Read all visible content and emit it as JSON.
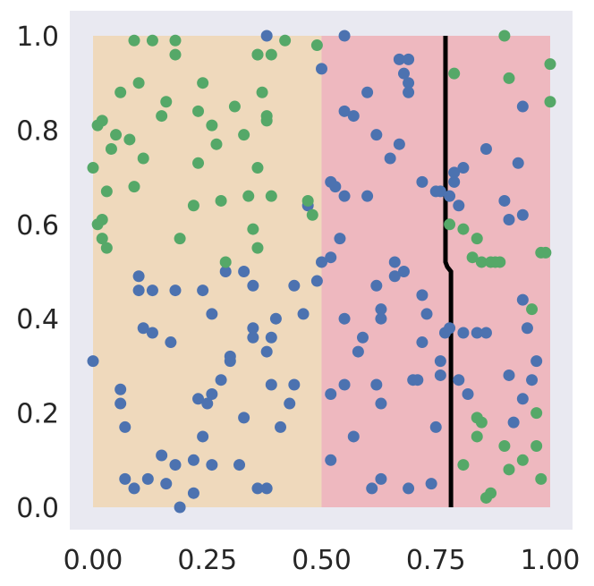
{
  "chart_data": {
    "type": "scatter",
    "title": "",
    "xlabel": "",
    "ylabel": "",
    "xlim": [
      -0.05,
      1.05
    ],
    "ylim": [
      -0.05,
      1.05
    ],
    "grid": false,
    "x_ticks": [
      "0.00",
      "0.25",
      "0.50",
      "0.75",
      "1.00"
    ],
    "x_tick_values": [
      0,
      0.25,
      0.5,
      0.75,
      1.0
    ],
    "y_ticks": [
      "0.0",
      "0.2",
      "0.4",
      "0.6",
      "0.8",
      "1.0"
    ],
    "y_tick_values": [
      0,
      0.2,
      0.4,
      0.6,
      0.8,
      1.0
    ],
    "colors": {
      "axes_bg": "#e9e9f1",
      "region_left": "#efd9bc",
      "region_right": "#eeb8bf",
      "blue": "#4c72b0",
      "green": "#55a868",
      "boundary": "#000000"
    },
    "regions": [
      {
        "x": [
          0.0,
          0.5
        ],
        "y": [
          0.0,
          1.0
        ],
        "color": "region_left"
      },
      {
        "x": [
          0.5,
          1.0
        ],
        "y": [
          0.0,
          1.0
        ],
        "color": "region_right"
      }
    ],
    "boundary": {
      "x": [
        0.771,
        0.771,
        0.775,
        0.783,
        0.783
      ],
      "y": [
        1.0,
        0.52,
        0.51,
        0.5,
        0.0
      ]
    },
    "series": [
      {
        "color": "blue",
        "points": [
          [
            0.19,
            0.0
          ],
          [
            0.22,
            0.03
          ],
          [
            0.32,
            0.09
          ],
          [
            0.36,
            0.04
          ],
          [
            0.38,
            0.04
          ],
          [
            0.39,
            0.26
          ],
          [
            0.4,
            0.4
          ],
          [
            0.41,
            0.17
          ],
          [
            0.44,
            0.26
          ],
          [
            0.44,
            0.47
          ],
          [
            0.46,
            0.41
          ],
          [
            0.0,
            0.31
          ],
          [
            0.06,
            0.22
          ],
          [
            0.06,
            0.25
          ],
          [
            0.07,
            0.17
          ],
          [
            0.07,
            0.06
          ],
          [
            0.09,
            0.04
          ],
          [
            0.1,
            0.46
          ],
          [
            0.1,
            0.49
          ],
          [
            0.11,
            0.38
          ],
          [
            0.12,
            0.06
          ],
          [
            0.13,
            0.37
          ],
          [
            0.13,
            0.46
          ],
          [
            0.15,
            0.11
          ],
          [
            0.16,
            0.05
          ],
          [
            0.17,
            0.35
          ],
          [
            0.18,
            0.09
          ],
          [
            0.18,
            0.46
          ],
          [
            0.22,
            0.1
          ],
          [
            0.23,
            0.23
          ],
          [
            0.24,
            0.15
          ],
          [
            0.24,
            0.46
          ],
          [
            0.25,
            0.22
          ],
          [
            0.26,
            0.24
          ],
          [
            0.26,
            0.41
          ],
          [
            0.26,
            0.09
          ],
          [
            0.28,
            0.27
          ],
          [
            0.29,
            0.5
          ],
          [
            0.3,
            0.31
          ],
          [
            0.3,
            0.32
          ],
          [
            0.33,
            0.5
          ],
          [
            0.33,
            0.19
          ],
          [
            0.35,
            0.36
          ],
          [
            0.35,
            0.47
          ],
          [
            0.35,
            0.38
          ],
          [
            0.38,
            0.33
          ],
          [
            0.39,
            0.36
          ],
          [
            0.43,
            0.22
          ],
          [
            0.49,
            0.48
          ],
          [
            0.5,
            0.52
          ],
          [
            0.52,
            0.53
          ],
          [
            0.5,
            0.93
          ],
          [
            0.52,
            0.24
          ],
          [
            0.52,
            0.1
          ],
          [
            0.52,
            0.69
          ],
          [
            0.53,
            0.68
          ],
          [
            0.54,
            0.57
          ],
          [
            0.55,
            0.84
          ],
          [
            0.55,
            0.66
          ],
          [
            0.55,
            0.4
          ],
          [
            0.55,
            0.26
          ],
          [
            0.57,
            0.15
          ],
          [
            0.57,
            0.83
          ],
          [
            0.58,
            0.33
          ],
          [
            0.59,
            0.36
          ],
          [
            0.6,
            0.88
          ],
          [
            0.6,
            0.66
          ],
          [
            0.61,
            0.04
          ],
          [
            0.62,
            0.47
          ],
          [
            0.62,
            0.26
          ],
          [
            0.62,
            0.79
          ],
          [
            0.63,
            0.4
          ],
          [
            0.63,
            0.42
          ],
          [
            0.63,
            0.22
          ],
          [
            0.63,
            0.06
          ],
          [
            0.65,
            0.74
          ],
          [
            0.66,
            0.52
          ],
          [
            0.66,
            0.49
          ],
          [
            0.67,
            0.77
          ],
          [
            0.67,
            0.95
          ],
          [
            0.68,
            0.92
          ],
          [
            0.68,
            0.5
          ],
          [
            0.69,
            0.88
          ],
          [
            0.69,
            0.9
          ],
          [
            0.69,
            0.04
          ],
          [
            0.69,
            0.95
          ],
          [
            0.7,
            0.27
          ],
          [
            0.71,
            0.27
          ],
          [
            0.72,
            0.45
          ],
          [
            0.72,
            0.69
          ],
          [
            0.72,
            0.35
          ],
          [
            0.73,
            0.41
          ],
          [
            0.74,
            0.05
          ],
          [
            0.75,
            0.67
          ],
          [
            0.76,
            0.28
          ],
          [
            0.76,
            0.67
          ],
          [
            0.76,
            0.31
          ],
          [
            0.77,
            0.37
          ],
          [
            0.78,
            0.66
          ],
          [
            0.78,
            0.38
          ],
          [
            0.79,
            0.71
          ],
          [
            0.79,
            0.69
          ],
          [
            0.8,
            0.64
          ],
          [
            0.81,
            0.37
          ],
          [
            0.81,
            0.72
          ],
          [
            0.82,
            0.24
          ],
          [
            0.84,
            0.37
          ],
          [
            0.86,
            0.37
          ],
          [
            0.86,
            0.76
          ],
          [
            0.9,
            0.65
          ],
          [
            0.91,
            0.28
          ],
          [
            0.91,
            0.61
          ],
          [
            0.92,
            0.18
          ],
          [
            0.94,
            0.62
          ],
          [
            0.94,
            0.23
          ],
          [
            0.95,
            0.38
          ],
          [
            0.96,
            0.27
          ],
          [
            0.94,
            0.85
          ],
          [
            0.93,
            0.73
          ],
          [
            0.94,
            0.44
          ],
          [
            0.8,
            0.27
          ],
          [
            0.75,
            0.17
          ],
          [
            0.47,
            0.64
          ],
          [
            0.38,
            1.0
          ],
          [
            0.55,
            1.0
          ],
          [
            0.97,
            0.31
          ]
        ]
      },
      {
        "color": "green",
        "points": [
          [
            0.0,
            0.72
          ],
          [
            0.01,
            0.81
          ],
          [
            0.01,
            0.6
          ],
          [
            0.02,
            0.57
          ],
          [
            0.02,
            0.82
          ],
          [
            0.02,
            0.61
          ],
          [
            0.03,
            0.55
          ],
          [
            0.03,
            0.67
          ],
          [
            0.04,
            0.76
          ],
          [
            0.05,
            0.79
          ],
          [
            0.06,
            0.88
          ],
          [
            0.08,
            0.78
          ],
          [
            0.09,
            0.68
          ],
          [
            0.09,
            0.99
          ],
          [
            0.1,
            0.9
          ],
          [
            0.11,
            0.74
          ],
          [
            0.13,
            0.99
          ],
          [
            0.15,
            0.83
          ],
          [
            0.16,
            0.86
          ],
          [
            0.18,
            0.99
          ],
          [
            0.19,
            0.57
          ],
          [
            0.22,
            0.64
          ],
          [
            0.23,
            0.73
          ],
          [
            0.23,
            0.84
          ],
          [
            0.24,
            0.9
          ],
          [
            0.26,
            0.81
          ],
          [
            0.27,
            0.77
          ],
          [
            0.28,
            0.65
          ],
          [
            0.29,
            0.52
          ],
          [
            0.31,
            0.85
          ],
          [
            0.33,
            0.79
          ],
          [
            0.34,
            0.66
          ],
          [
            0.35,
            0.59
          ],
          [
            0.36,
            0.72
          ],
          [
            0.36,
            0.55
          ],
          [
            0.37,
            0.88
          ],
          [
            0.38,
            0.83
          ],
          [
            0.38,
            0.82
          ],
          [
            0.39,
            0.96
          ],
          [
            0.39,
            0.66
          ],
          [
            0.42,
            0.99
          ],
          [
            0.47,
            0.65
          ],
          [
            0.48,
            0.62
          ],
          [
            0.49,
            0.98
          ],
          [
            0.36,
            0.96
          ],
          [
            0.18,
            0.96
          ],
          [
            0.78,
            0.6
          ],
          [
            0.79,
            0.92
          ],
          [
            0.81,
            0.59
          ],
          [
            0.83,
            0.53
          ],
          [
            0.84,
            0.57
          ],
          [
            0.84,
            0.15
          ],
          [
            0.85,
            0.18
          ],
          [
            0.85,
            0.52
          ],
          [
            0.86,
            0.02
          ],
          [
            0.87,
            0.52
          ],
          [
            0.87,
            0.03
          ],
          [
            0.89,
            0.52
          ],
          [
            0.9,
            1.0
          ],
          [
            0.9,
            0.13
          ],
          [
            0.91,
            0.91
          ],
          [
            0.91,
            0.08
          ],
          [
            0.94,
            0.1
          ],
          [
            0.96,
            0.42
          ],
          [
            0.97,
            0.13
          ],
          [
            0.97,
            0.2
          ],
          [
            0.98,
            0.06
          ],
          [
            0.98,
            0.54
          ],
          [
            0.99,
            0.54
          ],
          [
            1.0,
            0.94
          ],
          [
            1.0,
            0.86
          ],
          [
            0.84,
            0.19
          ],
          [
            0.81,
            0.09
          ],
          [
            0.88,
            0.52
          ],
          [
            0.36,
            0.96
          ]
        ]
      }
    ]
  }
}
